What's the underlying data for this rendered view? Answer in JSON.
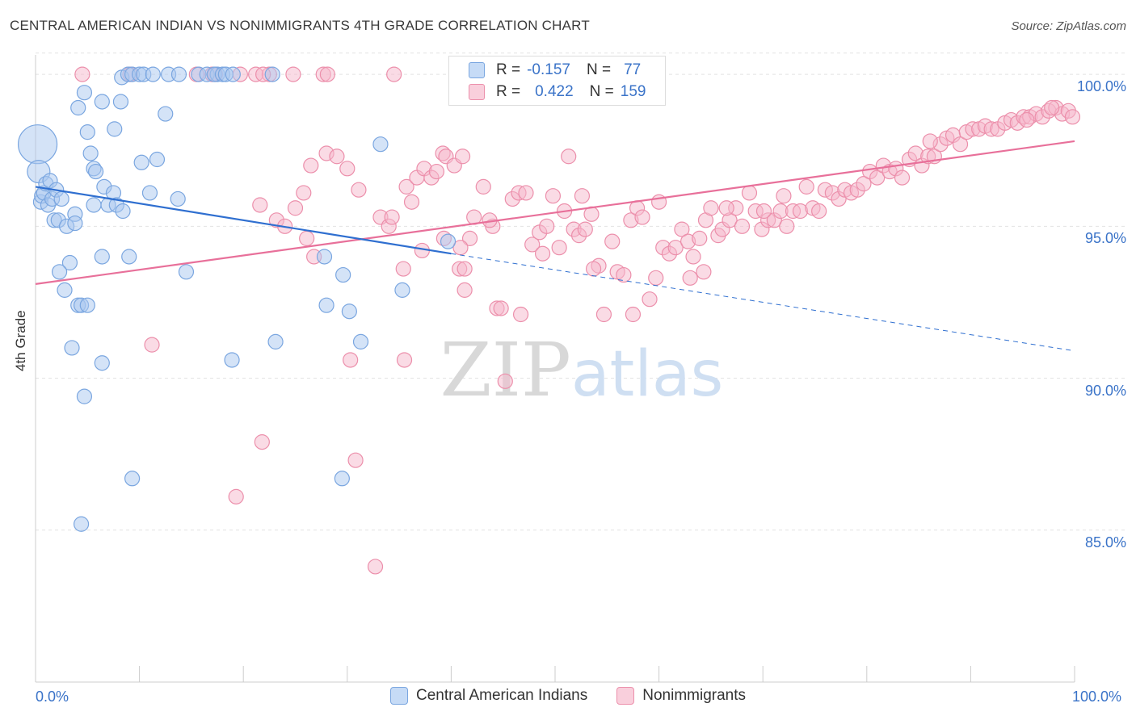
{
  "title": "CENTRAL AMERICAN INDIAN VS NONIMMIGRANTS 4TH GRADE CORRELATION CHART",
  "source": "Source: ZipAtlas.com",
  "watermark": "ZIPatlas",
  "legend": {
    "rows": [
      {
        "r_label": "R =",
        "r_value": "-0.157",
        "n_label": "N =",
        "n_value": "77"
      },
      {
        "r_label": "R =",
        "r_value": "0.422",
        "n_label": "N =",
        "n_value": "159"
      }
    ]
  },
  "colors": {
    "blue_fill": "#a9c8f0",
    "blue_stroke": "#7aa6e0",
    "blue_line": "#2f6fd0",
    "pink_fill": "#f6b8cb",
    "pink_stroke": "#ec8fab",
    "pink_line": "#e8709a",
    "tick_text": "#3a73c8",
    "grid": "#e2e2e2"
  },
  "chart_data": {
    "type": "scatter",
    "title": "CENTRAL AMERICAN INDIAN VS NONIMMIGRANTS 4TH GRADE CORRELATION CHART",
    "xlabel": "",
    "ylabel": "4th Grade",
    "xlim": [
      0,
      100
    ],
    "ylim": [
      80.0,
      100.8
    ],
    "x_tick_labels": [
      "0.0%",
      "100.0%"
    ],
    "y_ticks": [
      85,
      90,
      95,
      100
    ],
    "y_tick_labels": [
      "85.0%",
      "90.0%",
      "95.0%",
      "100.0%"
    ],
    "grid": true,
    "legend_position": "bottom-center",
    "series": [
      {
        "name": "Central American Indians",
        "r": -0.157,
        "n": 77,
        "trend": {
          "x0": 0,
          "y0": 96.3,
          "x1": 40,
          "y1": 94.1,
          "dashed_to_x": 100,
          "dashed_to_y": 90.9
        },
        "points": [
          [
            0.2,
            97.7,
            3
          ],
          [
            0.3,
            96.8,
            2
          ],
          [
            0.5,
            95.8,
            1
          ],
          [
            0.6,
            96.0,
            1
          ],
          [
            0.8,
            96.1,
            1
          ],
          [
            1.0,
            96.4,
            1
          ],
          [
            1.2,
            95.7,
            1
          ],
          [
            1.4,
            96.5,
            1
          ],
          [
            1.6,
            95.9,
            1
          ],
          [
            2.0,
            96.2,
            1
          ],
          [
            1.8,
            95.2,
            1
          ],
          [
            2.2,
            95.2,
            1
          ],
          [
            2.5,
            95.9,
            1
          ],
          [
            3.0,
            95.0,
            1
          ],
          [
            3.3,
            93.8,
            1
          ],
          [
            2.3,
            93.5,
            1
          ],
          [
            2.8,
            92.9,
            1
          ],
          [
            3.8,
            95.4,
            1
          ],
          [
            3.8,
            95.1,
            1
          ],
          [
            4.1,
            92.4,
            1
          ],
          [
            3.5,
            91.0,
            1
          ],
          [
            4.1,
            98.9,
            1
          ],
          [
            4.7,
            99.4,
            1
          ],
          [
            5.0,
            98.1,
            1
          ],
          [
            5.3,
            97.4,
            1
          ],
          [
            5.6,
            96.9,
            1
          ],
          [
            5.8,
            96.8,
            1
          ],
          [
            6.4,
            99.1,
            1
          ],
          [
            6.6,
            96.3,
            1
          ],
          [
            5.6,
            95.7,
            1
          ],
          [
            7.0,
            95.7,
            1
          ],
          [
            7.5,
            96.1,
            1
          ],
          [
            7.6,
            98.2,
            1
          ],
          [
            7.8,
            95.7,
            1
          ],
          [
            8.2,
            99.1,
            1
          ],
          [
            8.4,
            95.5,
            1
          ],
          [
            8.3,
            99.9,
            1
          ],
          [
            8.9,
            100.0,
            1
          ],
          [
            9.3,
            100.0,
            1
          ],
          [
            9.0,
            94.0,
            1
          ],
          [
            6.4,
            94.0,
            1
          ],
          [
            10.0,
            100.0,
            1
          ],
          [
            10.4,
            100.0,
            1
          ],
          [
            10.2,
            97.1,
            1
          ],
          [
            11.0,
            96.1,
            1
          ],
          [
            11.3,
            100.0,
            1
          ],
          [
            11.7,
            97.2,
            1
          ],
          [
            12.5,
            98.7,
            1
          ],
          [
            12.8,
            100.0,
            1
          ],
          [
            13.8,
            100.0,
            1
          ],
          [
            13.7,
            95.9,
            1
          ],
          [
            14.5,
            93.5,
            1
          ],
          [
            15.7,
            100.0,
            1
          ],
          [
            16.5,
            100.0,
            1
          ],
          [
            17.5,
            100.0,
            1
          ],
          [
            17.2,
            100.0,
            1
          ],
          [
            18.0,
            100.0,
            1
          ],
          [
            18.3,
            100.0,
            1
          ],
          [
            19.0,
            100.0,
            1
          ],
          [
            22.8,
            100.0,
            1
          ],
          [
            27.8,
            94.0,
            1
          ],
          [
            29.6,
            93.4,
            1
          ],
          [
            30.2,
            92.2,
            1
          ],
          [
            28.0,
            92.4,
            1
          ],
          [
            31.3,
            91.2,
            1
          ],
          [
            33.2,
            97.7,
            1
          ],
          [
            35.3,
            92.9,
            1
          ],
          [
            39.7,
            94.5,
            1
          ],
          [
            23.1,
            91.2,
            1
          ],
          [
            18.9,
            90.6,
            1
          ],
          [
            6.4,
            90.5,
            1
          ],
          [
            4.7,
            89.4,
            1
          ],
          [
            9.3,
            86.7,
            1
          ],
          [
            29.5,
            86.7,
            1
          ],
          [
            4.4,
            85.2,
            1
          ],
          [
            4.4,
            92.4,
            1
          ],
          [
            5.0,
            92.4,
            1
          ]
        ]
      },
      {
        "name": "Nonimmigrants",
        "r": 0.422,
        "n": 159,
        "trend": {
          "x0": 0,
          "y0": 93.1,
          "x1": 100,
          "y1": 97.8
        },
        "points": [
          [
            4.5,
            100.0,
            1
          ],
          [
            9.1,
            100.0,
            1
          ],
          [
            15.5,
            100.0,
            1
          ],
          [
            17.0,
            100.0,
            1
          ],
          [
            17.3,
            100.0,
            1
          ],
          [
            21.2,
            100.0,
            1
          ],
          [
            22.5,
            100.0,
            1
          ],
          [
            27.7,
            100.0,
            1
          ],
          [
            28.1,
            100.0,
            1
          ],
          [
            34.5,
            100.0,
            1
          ],
          [
            11.2,
            91.1,
            1
          ],
          [
            21.6,
            95.7,
            1
          ],
          [
            23.2,
            95.2,
            1
          ],
          [
            24.0,
            95.0,
            1
          ],
          [
            25.0,
            95.6,
            1
          ],
          [
            25.8,
            96.1,
            1
          ],
          [
            26.1,
            94.6,
            1
          ],
          [
            26.5,
            97.0,
            1
          ],
          [
            28.0,
            97.4,
            1
          ],
          [
            29.0,
            97.3,
            1
          ],
          [
            30.0,
            96.9,
            1
          ],
          [
            30.3,
            90.6,
            1
          ],
          [
            31.1,
            96.2,
            1
          ],
          [
            33.2,
            95.3,
            1
          ],
          [
            34.0,
            95.0,
            1
          ],
          [
            35.4,
            93.6,
            1
          ],
          [
            35.7,
            96.3,
            1
          ],
          [
            36.2,
            95.8,
            1
          ],
          [
            36.7,
            96.6,
            1
          ],
          [
            37.4,
            96.9,
            1
          ],
          [
            38.1,
            96.6,
            1
          ],
          [
            38.6,
            96.8,
            1
          ],
          [
            39.2,
            97.4,
            1
          ],
          [
            39.5,
            97.3,
            1
          ],
          [
            40.3,
            97.0,
            1
          ],
          [
            40.8,
            93.6,
            1
          ],
          [
            41.3,
            93.6,
            1
          ],
          [
            41.8,
            94.6,
            1
          ],
          [
            42.2,
            95.3,
            1
          ],
          [
            43.1,
            96.3,
            1
          ],
          [
            44.0,
            95.0,
            1
          ],
          [
            44.4,
            92.3,
            1
          ],
          [
            44.8,
            92.3,
            1
          ],
          [
            45.2,
            89.9,
            1
          ],
          [
            45.9,
            95.9,
            1
          ],
          [
            46.5,
            96.1,
            1
          ],
          [
            47.2,
            96.1,
            1
          ],
          [
            47.8,
            94.4,
            1
          ],
          [
            48.5,
            94.8,
            1
          ],
          [
            49.2,
            95.0,
            1
          ],
          [
            49.8,
            96.0,
            1
          ],
          [
            50.4,
            94.3,
            1
          ],
          [
            50.9,
            95.5,
            1
          ],
          [
            51.3,
            97.3,
            1
          ],
          [
            51.8,
            94.9,
            1
          ],
          [
            52.3,
            94.7,
            1
          ],
          [
            52.9,
            94.9,
            1
          ],
          [
            53.5,
            95.4,
            1
          ],
          [
            54.2,
            93.7,
            1
          ],
          [
            54.7,
            92.1,
            1
          ],
          [
            55.5,
            94.5,
            1
          ],
          [
            56.0,
            93.5,
            1
          ],
          [
            56.6,
            93.4,
            1
          ],
          [
            57.3,
            95.2,
            1
          ],
          [
            57.9,
            95.6,
            1
          ],
          [
            58.4,
            95.3,
            1
          ],
          [
            59.1,
            92.6,
            1
          ],
          [
            59.7,
            93.3,
            1
          ],
          [
            60.4,
            94.3,
            1
          ],
          [
            61.0,
            94.1,
            1
          ],
          [
            61.6,
            94.3,
            1
          ],
          [
            62.2,
            94.9,
            1
          ],
          [
            62.8,
            94.5,
            1
          ],
          [
            63.3,
            94.0,
            1
          ],
          [
            63.9,
            94.6,
            1
          ],
          [
            64.5,
            95.2,
            1
          ],
          [
            65.0,
            95.6,
            1
          ],
          [
            65.7,
            94.7,
            1
          ],
          [
            66.1,
            94.9,
            1
          ],
          [
            66.8,
            95.2,
            1
          ],
          [
            67.4,
            95.6,
            1
          ],
          [
            68.0,
            95.0,
            1
          ],
          [
            68.7,
            96.1,
            1
          ],
          [
            69.3,
            95.5,
            1
          ],
          [
            69.9,
            94.9,
            1
          ],
          [
            70.5,
            95.2,
            1
          ],
          [
            71.1,
            95.2,
            1
          ],
          [
            71.7,
            95.5,
            1
          ],
          [
            72.3,
            95.0,
            1
          ],
          [
            72.9,
            95.5,
            1
          ],
          [
            73.6,
            95.5,
            1
          ],
          [
            74.2,
            96.3,
            1
          ],
          [
            74.8,
            95.6,
            1
          ],
          [
            75.4,
            95.5,
            1
          ],
          [
            76.0,
            96.2,
            1
          ],
          [
            76.7,
            96.1,
            1
          ],
          [
            77.3,
            95.9,
            1
          ],
          [
            77.9,
            96.2,
            1
          ],
          [
            78.5,
            96.1,
            1
          ],
          [
            79.1,
            96.2,
            1
          ],
          [
            79.7,
            96.4,
            1
          ],
          [
            80.3,
            96.8,
            1
          ],
          [
            81.0,
            96.6,
            1
          ],
          [
            81.6,
            97.0,
            1
          ],
          [
            82.2,
            96.8,
            1
          ],
          [
            82.8,
            96.9,
            1
          ],
          [
            83.4,
            96.6,
            1
          ],
          [
            84.1,
            97.2,
            1
          ],
          [
            84.7,
            97.4,
            1
          ],
          [
            85.3,
            97.0,
            1
          ],
          [
            85.9,
            97.3,
            1
          ],
          [
            86.5,
            97.3,
            1
          ],
          [
            87.1,
            97.7,
            1
          ],
          [
            87.7,
            97.9,
            1
          ],
          [
            88.3,
            98.0,
            1
          ],
          [
            89.0,
            97.7,
            1
          ],
          [
            89.6,
            98.1,
            1
          ],
          [
            90.2,
            98.2,
            1
          ],
          [
            90.8,
            98.2,
            1
          ],
          [
            91.4,
            98.3,
            1
          ],
          [
            92.0,
            98.2,
            1
          ],
          [
            92.6,
            98.2,
            1
          ],
          [
            93.3,
            98.4,
            1
          ],
          [
            93.9,
            98.5,
            1
          ],
          [
            94.5,
            98.4,
            1
          ],
          [
            95.1,
            98.6,
            1
          ],
          [
            95.7,
            98.6,
            1
          ],
          [
            96.3,
            98.7,
            1
          ],
          [
            96.9,
            98.6,
            1
          ],
          [
            97.5,
            98.8,
            1
          ],
          [
            98.2,
            98.9,
            1
          ],
          [
            98.8,
            98.7,
            1
          ],
          [
            99.4,
            98.8,
            1
          ],
          [
            99.8,
            98.6,
            1
          ],
          [
            53.7,
            93.6,
            1
          ],
          [
            57.5,
            92.1,
            1
          ],
          [
            30.8,
            87.3,
            1
          ],
          [
            21.8,
            87.9,
            1
          ],
          [
            19.3,
            86.1,
            1
          ],
          [
            32.7,
            83.8,
            1
          ],
          [
            41.3,
            92.9,
            1
          ],
          [
            39.3,
            94.6,
            1
          ],
          [
            35.5,
            90.6,
            1
          ],
          [
            40.9,
            94.3,
            1
          ],
          [
            48.8,
            94.1,
            1
          ],
          [
            43.7,
            95.2,
            1
          ],
          [
            34.3,
            95.3,
            1
          ],
          [
            41.1,
            97.3,
            1
          ],
          [
            26.8,
            94.0,
            1
          ],
          [
            19.7,
            100.0,
            1
          ],
          [
            21.9,
            100.0,
            1
          ],
          [
            24.8,
            100.0,
            1
          ],
          [
            46.7,
            92.1,
            1
          ],
          [
            63.0,
            93.3,
            1
          ],
          [
            37.2,
            94.2,
            1
          ],
          [
            60.0,
            95.8,
            1
          ],
          [
            72.0,
            96.0,
            1
          ],
          [
            86.1,
            97.8,
            1
          ],
          [
            95.4,
            98.5,
            1
          ],
          [
            97.8,
            98.9,
            1
          ],
          [
            70.1,
            95.5,
            1
          ],
          [
            66.5,
            95.6,
            1
          ],
          [
            64.3,
            93.5,
            1
          ],
          [
            52.6,
            96.0,
            1
          ]
        ]
      }
    ]
  }
}
